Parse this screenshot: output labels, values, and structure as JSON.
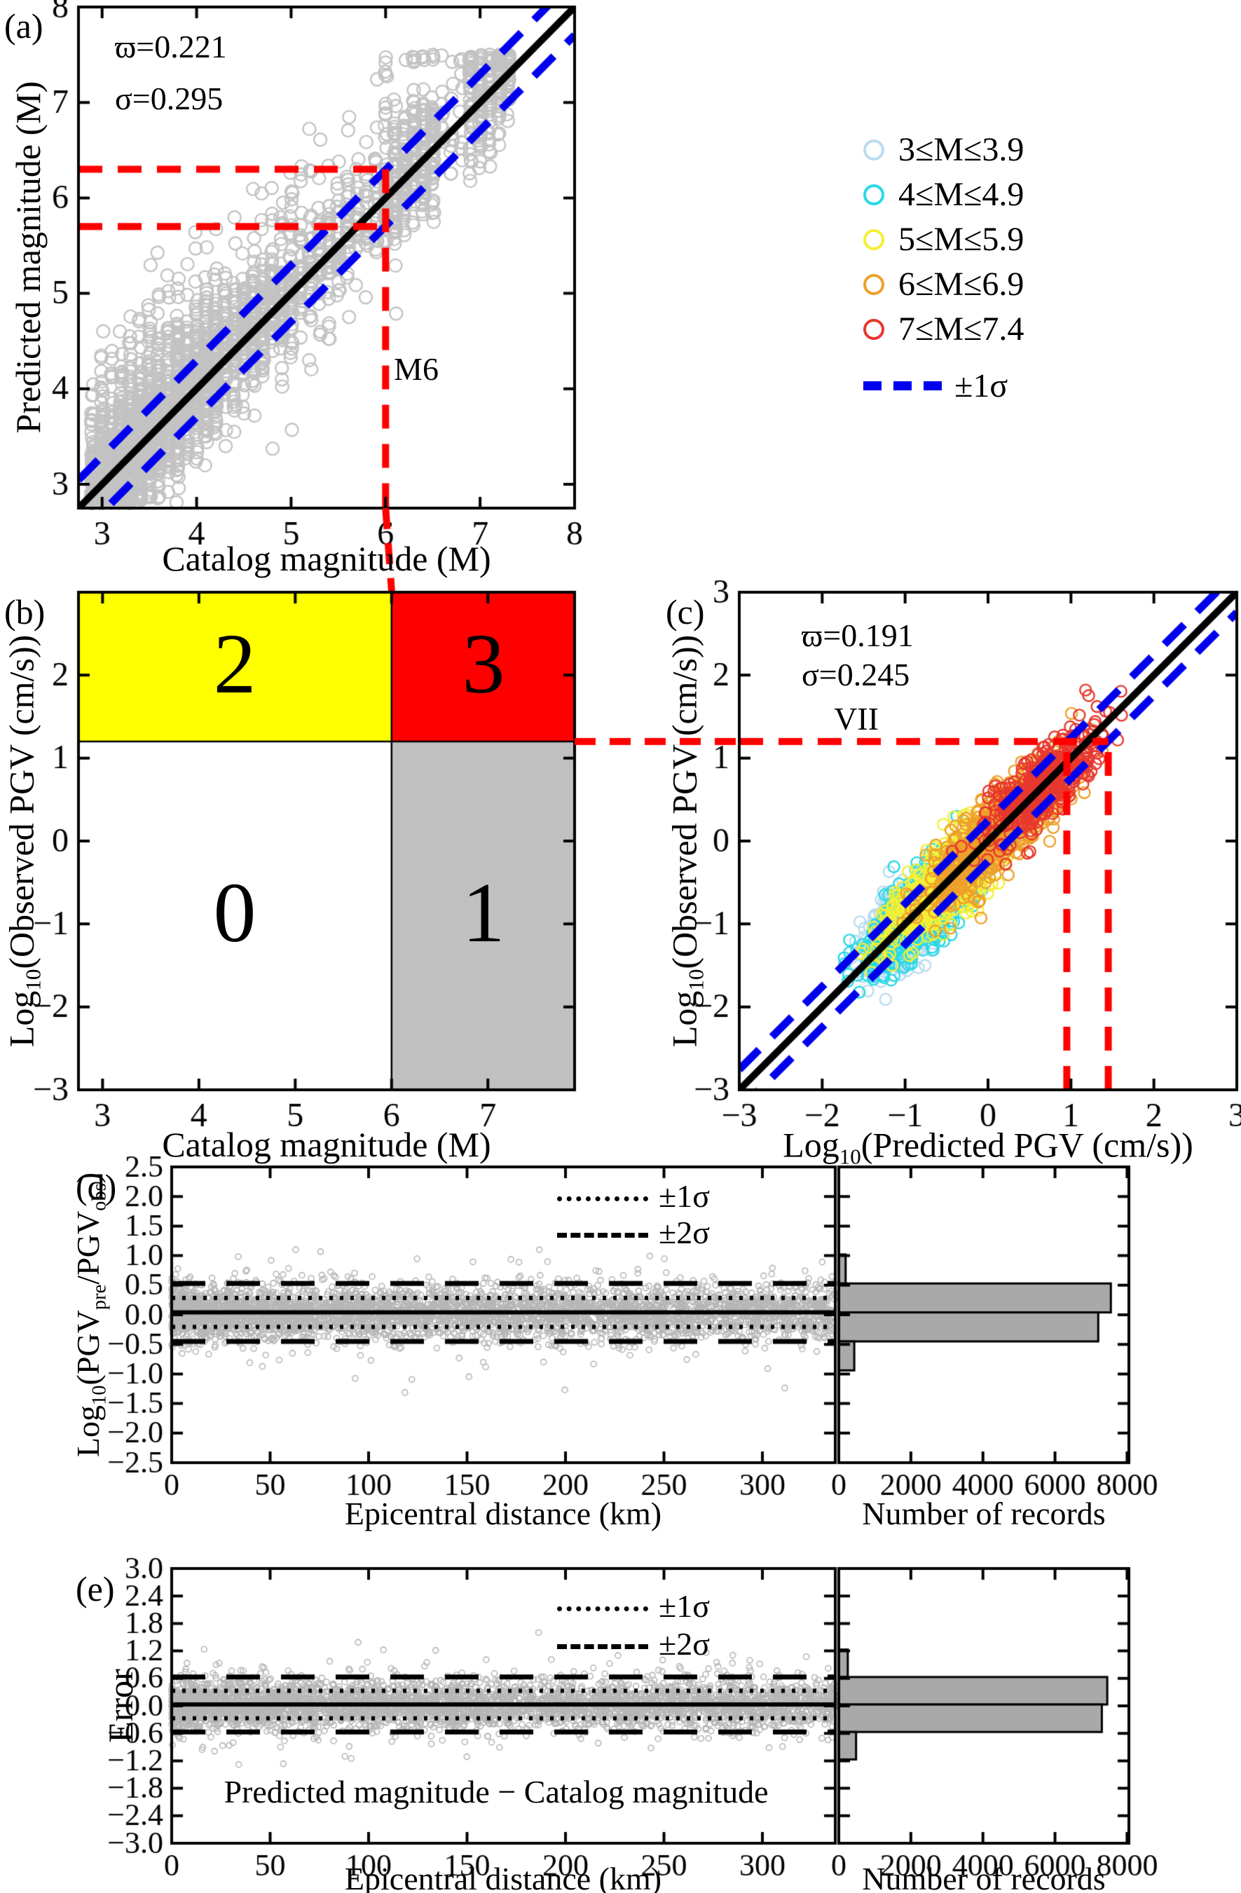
{
  "figure": {
    "background": "#ffffff",
    "colors": {
      "identity": "#000000",
      "sigma_band": "#0000ee",
      "highlight": "#ff0000",
      "frame": "#000000",
      "gray_marker": "#c3c3c3"
    }
  },
  "legend": {
    "sigma_label": "±1σ",
    "sigma_color": "#0000ee"
  },
  "chart_data": [
    {
      "id": "a",
      "type": "scatter",
      "panel_label": "(a)",
      "xlabel": "Catalog magnitude (M)",
      "ylabel": "Predicted magnitude (M)",
      "xlim": [
        2.75,
        8
      ],
      "ylim": [
        2.75,
        8
      ],
      "xticks": [
        3,
        4,
        5,
        6,
        7,
        8
      ],
      "yticks": [
        3,
        4,
        5,
        6,
        7,
        8
      ],
      "stats": [
        "ϖ=0.221",
        "σ=0.295"
      ],
      "annotation": {
        "text": "M6",
        "x": 6.45,
        "y": 4.05
      },
      "identity_line": true,
      "sigma_offset": 0.295,
      "red": {
        "h": [
          6.3,
          5.7
        ],
        "h_x_end": 6,
        "v": 6
      },
      "marker": {
        "color": "#c3c3c3",
        "r": 9
      },
      "scatter": {
        "seed": 7,
        "sd": 0.32,
        "tail_p": 0.12,
        "ymin": 2.8,
        "ymax": 7.5,
        "columns": [
          {
            "m0": 2.9,
            "m1": 3.6,
            "n": 150
          },
          {
            "m0": 3.7,
            "m1": 4.2,
            "n": 100
          },
          {
            "m0": 4.3,
            "m1": 5.0,
            "n": 55
          },
          {
            "m0": 5.1,
            "m1": 5.6,
            "n": 32
          },
          {
            "m0": 5.7,
            "m1": 5.9,
            "n": 18
          },
          {
            "m0": 6.0,
            "m1": 6.5,
            "n": 55
          },
          {
            "m0": 6.6,
            "m1": 6.8,
            "n": 10
          },
          {
            "m0": 6.9,
            "m1": 7.3,
            "n": 45
          }
        ]
      }
    },
    {
      "id": "b",
      "type": "quadrant",
      "panel_label": "(b)",
      "xlabel": "Catalog magnitude (M)",
      "ylabel_parts": [
        [
          "Log",
          0
        ],
        [
          "10",
          1
        ],
        [
          "(Observed PGV (cm/s))",
          0
        ]
      ],
      "xlim": [
        2.75,
        7.9
      ],
      "ylim": [
        -3,
        3
      ],
      "xticks": [
        3,
        4,
        5,
        6,
        7
      ],
      "yticks": [
        -3,
        -2,
        -1,
        0,
        1,
        2
      ],
      "xtick_marks": [
        3,
        4,
        5,
        6,
        7
      ],
      "ytick_marks": [
        -3,
        -2,
        -1,
        0,
        1,
        2,
        3
      ],
      "x_split": 6,
      "y_split": 1.2,
      "quadrants": [
        {
          "label": "2",
          "color": "#ffff00",
          "pos": "top-left"
        },
        {
          "label": "3",
          "color": "#ff0000",
          "pos": "top-right"
        },
        {
          "label": "0",
          "color": "#ffffff",
          "pos": "bottom-left"
        },
        {
          "label": "1",
          "color": "#c0c0c0",
          "pos": "bottom-right"
        }
      ]
    },
    {
      "id": "c",
      "type": "scatter",
      "panel_label": "(c)",
      "xlabel_parts": [
        [
          "Log",
          0
        ],
        [
          "10",
          1
        ],
        [
          "(Predicted PGV (cm/s))",
          0
        ]
      ],
      "ylabel_parts": [
        [
          "Log",
          0
        ],
        [
          "10",
          1
        ],
        [
          "(Observed PGV (cm/s))",
          0
        ]
      ],
      "xlim": [
        -3,
        3
      ],
      "ylim": [
        -3,
        3
      ],
      "xticks": [
        -3,
        -2,
        -1,
        0,
        1,
        2,
        3
      ],
      "yticks": [
        -3,
        -2,
        -1,
        0,
        1,
        2,
        3
      ],
      "stats": [
        "ϖ=0.191",
        "σ=0.245"
      ],
      "annotation": {
        "text": "VII"
      },
      "identity_line": true,
      "sigma_offset": 0.245,
      "red": {
        "h": 1.2,
        "h_x_end": 1.45,
        "v": [
          0.95,
          1.45
        ],
        "v_y_end": 1.1
      },
      "marker": {
        "r": 8
      },
      "seed": 13,
      "classes": [
        {
          "label": "3≤M≤3.9",
          "color": "#badcf0",
          "n": 430,
          "t": -1.05,
          "tsd": 0.17,
          "clip": [
            -1.55,
            -0.45
          ]
        },
        {
          "label": "4≤M≤4.9",
          "color": "#29d8e6",
          "n": 640,
          "t": -0.8,
          "tsd": 0.3,
          "clip": [
            -1.5,
            0.35
          ]
        },
        {
          "label": "5≤M≤5.9",
          "color": "#f4ef35",
          "n": 660,
          "t": -0.42,
          "tsd": 0.38,
          "clip": [
            -1.35,
            0.95
          ]
        },
        {
          "label": "6≤M≤6.9",
          "color": "#eea02b",
          "n": 700,
          "t": 0.18,
          "tsd": 0.42,
          "clip": [
            -0.95,
            1.6
          ]
        },
        {
          "label": "7≤M≤7.4",
          "color": "#e8382e",
          "n": 380,
          "t": 0.66,
          "tsd": 0.33,
          "clip": [
            -0.5,
            1.7
          ]
        }
      ]
    },
    {
      "id": "d",
      "type": "residual",
      "panel_label": "(d)",
      "xlabel": "Epicentral distance (km)",
      "ylabel_parts": [
        [
          "Log",
          0
        ],
        [
          "10",
          1
        ],
        [
          "(PGV",
          0
        ],
        [
          "pre",
          1
        ],
        [
          "/PGV",
          0
        ],
        [
          "obs",
          1
        ],
        [
          ")",
          0
        ]
      ],
      "xlim": [
        0,
        337
      ],
      "ylim": [
        -2.5,
        2.5
      ],
      "xticks": [
        0,
        50,
        100,
        150,
        200,
        250,
        300
      ],
      "ytick_labels": [
        "2.5",
        "2.0",
        "1.5",
        "1.0",
        "0.5",
        "0.0",
        "−0.5",
        "−1.0",
        "−1.5",
        "−2.0",
        "−2.5"
      ],
      "mean": 0.04,
      "sigma": 0.245,
      "legend": {
        "s1": "±1σ",
        "s2": "±2σ"
      },
      "marker": {
        "color": "#b6b6b6",
        "r": 4
      },
      "scatter": {
        "seed": 21,
        "n": 4200,
        "xpow": 1.3,
        "sd1": 0.21,
        "sd2": 0.42,
        "p2": 0.12,
        "clip": [
          -1.35,
          1.1
        ]
      },
      "hist": {
        "xlabel": "Number of records",
        "xticks": [
          0,
          2000,
          4000,
          6000,
          8000
        ],
        "xlim": [
          0,
          8050
        ],
        "edges": [
          1.02,
          0.53,
          0.04,
          -0.45,
          -0.94
        ],
        "values": [
          190,
          7550,
          7200,
          430
        ],
        "fill": "#a9a9a9"
      }
    },
    {
      "id": "e",
      "type": "residual",
      "panel_label": "(e)",
      "xlabel": "Epicentral distance (km)",
      "ylabel": "Error",
      "xlim": [
        0,
        337
      ],
      "ylim": [
        -3,
        3
      ],
      "xticks": [
        0,
        50,
        100,
        150,
        200,
        250,
        300
      ],
      "ytick_labels": [
        "3.0",
        "2.4",
        "1.8",
        "1.2",
        "0.6",
        "0.0",
        "−0.6",
        "−1.2",
        "−1.8",
        "−2.4",
        "−3.0"
      ],
      "mean": 0.03,
      "sigma": 0.3,
      "legend": {
        "s1": "±1σ",
        "s2": "±2σ"
      },
      "annotation": {
        "text": "Predicted magnitude − Catalog magnitude"
      },
      "marker": {
        "color": "#b6b6b6",
        "r": 4
      },
      "scatter": {
        "seed": 33,
        "n": 4200,
        "xpow": 1.3,
        "sd1": 0.25,
        "sd2": 0.5,
        "p2": 0.12,
        "clip": [
          -1.95,
          1.6
        ]
      },
      "hist": {
        "xlabel": "Number of records",
        "xticks": [
          0,
          2000,
          4000,
          6000,
          8000
        ],
        "xlim": [
          0,
          8050
        ],
        "edges": [
          1.23,
          0.63,
          0.03,
          -0.57,
          -1.17
        ],
        "values": [
          250,
          7450,
          7300,
          480
        ],
        "fill": "#a9a9a9"
      }
    }
  ]
}
